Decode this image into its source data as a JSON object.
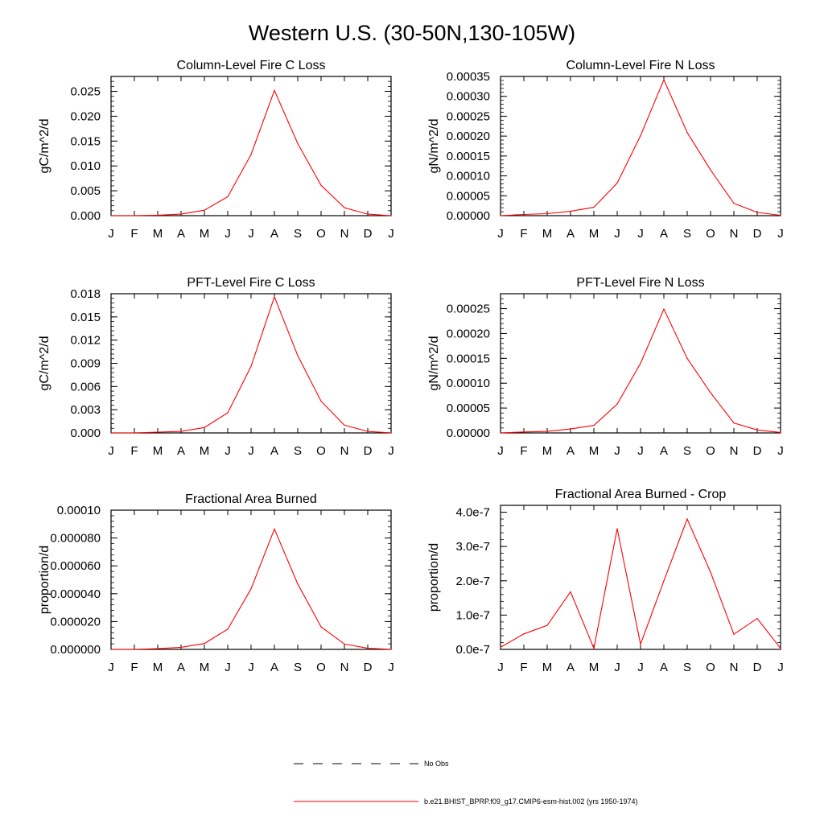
{
  "title": "Western U.S. (30-50N,130-105W)",
  "months": [
    "J",
    "F",
    "M",
    "A",
    "M",
    "J",
    "J",
    "A",
    "S",
    "O",
    "N",
    "D",
    "J"
  ],
  "colors": {
    "series": "#ff0000",
    "axis": "#000000",
    "legend_dash": "#000000"
  },
  "legend": [
    {
      "label": "No Obs",
      "style": "dashed",
      "color": "#000000"
    },
    {
      "label": "b.e21.BHIST_BPRP.f09_g17.CMIP6-esm-hist.002 (yrs 1950-1974)",
      "style": "solid",
      "color": "#ff0000"
    }
  ],
  "chart_data": [
    {
      "type": "line",
      "title": "Column-Level Fire C Loss",
      "ylabel": "gC/m^2/d",
      "xlabel": "",
      "ylim": [
        0,
        0.028
      ],
      "yticks": [
        0,
        0.005,
        0.01,
        0.015,
        0.02,
        0.025
      ],
      "ytick_labels": [
        "0.000",
        "0.005",
        "0.010",
        "0.015",
        "0.020",
        "0.025"
      ],
      "series": [
        {
          "name": "b.e21.BHIST_BPRP.f09_g17.CMIP6-esm-hist.002 (yrs 1950-1974)",
          "values": [
            0.0,
            0.0,
            0.0001,
            0.0003,
            0.0011,
            0.0038,
            0.0123,
            0.0252,
            0.0145,
            0.0061,
            0.0016,
            0.0003,
            0.0
          ]
        }
      ]
    },
    {
      "type": "line",
      "title": "Column-Level Fire N Loss",
      "ylabel": "gN/m^2/d",
      "xlabel": "",
      "ylim": [
        0,
        0.00035
      ],
      "yticks": [
        0,
        5e-05,
        0.0001,
        0.00015,
        0.0002,
        0.00025,
        0.0003,
        0.00035
      ],
      "ytick_labels": [
        "0.00000",
        "0.00005",
        "0.00010",
        "0.00015",
        "0.00020",
        "0.00025",
        "0.00030",
        "0.00035"
      ],
      "series": [
        {
          "name": "b.e21.BHIST_BPRP.f09_g17.CMIP6-esm-hist.002 (yrs 1950-1974)",
          "values": [
            0.0,
            3e-06,
            5e-06,
            1.1e-05,
            2.1e-05,
            8.2e-05,
            0.000201,
            0.000342,
            0.000209,
            0.000115,
            3.1e-05,
            8e-06,
            1e-06
          ]
        }
      ]
    },
    {
      "type": "line",
      "title": "PFT-Level Fire C Loss",
      "ylabel": "gC/m^2/d",
      "xlabel": "",
      "ylim": [
        0,
        0.018
      ],
      "yticks": [
        0,
        0.003,
        0.006,
        0.009,
        0.012,
        0.015,
        0.018
      ],
      "ytick_labels": [
        "0.000",
        "0.003",
        "0.006",
        "0.009",
        "0.012",
        "0.015",
        "0.018"
      ],
      "series": [
        {
          "name": "b.e21.BHIST_BPRP.f09_g17.CMIP6-esm-hist.002 (yrs 1950-1974)",
          "values": [
            0.0,
            0.0,
            0.0001,
            0.0002,
            0.0007,
            0.0026,
            0.0086,
            0.0176,
            0.01,
            0.0041,
            0.001,
            0.0002,
            0.0
          ]
        }
      ]
    },
    {
      "type": "line",
      "title": "PFT-Level Fire N Loss",
      "ylabel": "gN/m^2/d",
      "xlabel": "",
      "ylim": [
        0,
        0.00028
      ],
      "yticks": [
        0,
        5e-05,
        0.0001,
        0.00015,
        0.0002,
        0.00025
      ],
      "ytick_labels": [
        "0.00000",
        "0.00005",
        "0.00010",
        "0.00015",
        "0.00020",
        "0.00025"
      ],
      "series": [
        {
          "name": "b.e21.BHIST_BPRP.f09_g17.CMIP6-esm-hist.002 (yrs 1950-1974)",
          "values": [
            0.0,
            2e-06,
            3e-06,
            8e-06,
            1.5e-05,
            5.8e-05,
            0.00014,
            0.000249,
            0.00015,
            8.1e-05,
            2e-05,
            6e-06,
            1e-06
          ]
        }
      ]
    },
    {
      "type": "line",
      "title": "Fractional Area Burned",
      "ylabel": "proportion/d",
      "xlabel": "",
      "ylim": [
        0,
        0.0001
      ],
      "yticks": [
        0,
        2e-05,
        4e-05,
        6e-05,
        8e-05,
        0.0001
      ],
      "ytick_labels": [
        "0.000000",
        "0.000020",
        "0.000040",
        "0.000060",
        "0.000080",
        "0.00010"
      ],
      "series": [
        {
          "name": "b.e21.BHIST_BPRP.f09_g17.CMIP6-esm-hist.002 (yrs 1950-1974)",
          "values": [
            0.0,
            0.0,
            5e-07,
            1.5e-06,
            4.2e-06,
            1.45e-05,
            4.35e-05,
            8.65e-05,
            4.7e-05,
            1.62e-05,
            3.8e-06,
            8e-07,
            0.0
          ]
        }
      ]
    },
    {
      "type": "line",
      "title": "Fractional Area Burned - Crop",
      "ylabel": "proportion/d",
      "xlabel": "",
      "ylim": [
        0,
        4.2e-07
      ],
      "yticks": [
        0,
        1e-07,
        2e-07,
        3e-07,
        4e-07
      ],
      "ytick_labels": [
        "0.0e-7",
        "1.0e-7",
        "2.0e-7",
        "3.0e-7",
        "4.0e-7"
      ],
      "series": [
        {
          "name": "b.e21.BHIST_BPRP.f09_g17.CMIP6-esm-hist.002 (yrs 1950-1974)",
          "values": [
            6e-09,
            4.5e-08,
            7e-08,
            1.68e-07,
            3e-09,
            3.52e-07,
            1.5e-08,
            2e-07,
            3.8e-07,
            2.25e-07,
            4.4e-08,
            9e-08,
            3e-09
          ]
        }
      ]
    }
  ]
}
